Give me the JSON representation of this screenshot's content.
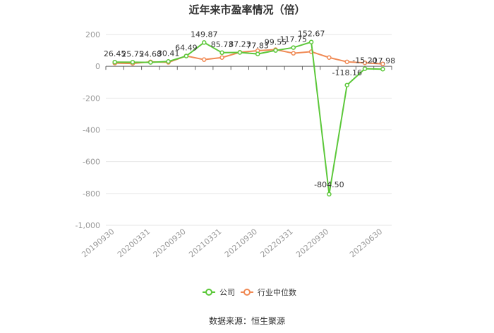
{
  "chart_data": {
    "type": "line",
    "title": "近年来市盈率情况（倍）",
    "source": "数据来源：恒生聚源",
    "ylim": [
      -1000,
      200
    ],
    "yticks": [
      200,
      0,
      -200,
      -400,
      -600,
      -800,
      -1000
    ],
    "ytick_labels": [
      "200",
      "0",
      "-200",
      "-400",
      "-600",
      "-800",
      "-1,000"
    ],
    "x": [
      "20190930",
      "20191231",
      "20200331",
      "20200630",
      "20200930",
      "20201231",
      "20210331",
      "20210630",
      "20210930",
      "20211231",
      "20220331",
      "20220630",
      "20220930",
      "20221231",
      "20230331",
      "20230630"
    ],
    "xtick_labels": [
      "20190930",
      "20200331",
      "20200930",
      "20210331",
      "20210930",
      "20220331",
      "20220930",
      "20230630"
    ],
    "series": [
      {
        "name": "公司",
        "color": "#5cc83a",
        "values": [
          26.45,
          25.75,
          24.68,
          30.41,
          64.49,
          149.87,
          85.73,
          87.23,
          77.83,
          99.55,
          117.75,
          152.67,
          -804.5,
          -118.16,
          -15.2,
          -17.98
        ],
        "labels": [
          "26.45",
          "25.75",
          "24.68",
          "30.41",
          "64.49",
          "149.87",
          "85.73",
          "87.23",
          "77.83",
          "99.55",
          "117.75",
          "152.67",
          "-804.50",
          "-118.16",
          "-15.20",
          "-17.98"
        ]
      },
      {
        "name": "行业中位数",
        "color": "#f08a55",
        "values": [
          20,
          18,
          28,
          25,
          65,
          42,
          55,
          88,
          98,
          105,
          82,
          92,
          55,
          28,
          22,
          15
        ]
      }
    ],
    "legend_position": "bottom"
  }
}
